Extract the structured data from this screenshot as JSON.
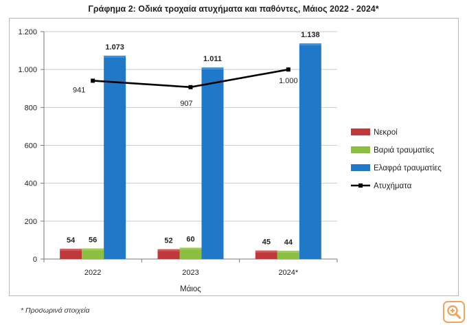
{
  "chart_data": {
    "type": "bar",
    "title": "Γράφημα 2: Οδικά τροχαία ατυχήματα και παθόντες, Μάιος 2022 - 2024*",
    "xlabel": "Μάιος",
    "ylabel": "",
    "categories": [
      "2022",
      "2023",
      "2024*"
    ],
    "ylim": [
      0,
      1200
    ],
    "yticks": [
      0,
      200,
      400,
      600,
      800,
      1000,
      1200
    ],
    "ytick_labels": [
      "0",
      "200",
      "400",
      "600",
      "800",
      "1.000",
      "1.200"
    ],
    "grid": true,
    "legend_position": "right",
    "series": [
      {
        "name": "Νεκροί",
        "type": "bar",
        "color": "#c0383a",
        "values": [
          54,
          52,
          45
        ],
        "labels": [
          "54",
          "52",
          "45"
        ]
      },
      {
        "name": "Βαριά τραυματίες",
        "type": "bar",
        "color": "#8cbf3f",
        "values": [
          56,
          60,
          44
        ],
        "labels": [
          "56",
          "60",
          "44"
        ]
      },
      {
        "name": "Ελαφρά τραυματίες",
        "type": "bar",
        "color": "#1f78c8",
        "values": [
          1073,
          1011,
          1138
        ],
        "labels": [
          "1.073",
          "1.011",
          "1.138"
        ]
      },
      {
        "name": "Ατυχήματα",
        "type": "line",
        "color": "#000000",
        "values": [
          941,
          907,
          1000
        ],
        "labels": [
          "941",
          "907",
          "1.000"
        ]
      }
    ]
  },
  "footnote": "* Προσωρινά στοιχεία",
  "zoom_icon": "zoom-in-icon"
}
